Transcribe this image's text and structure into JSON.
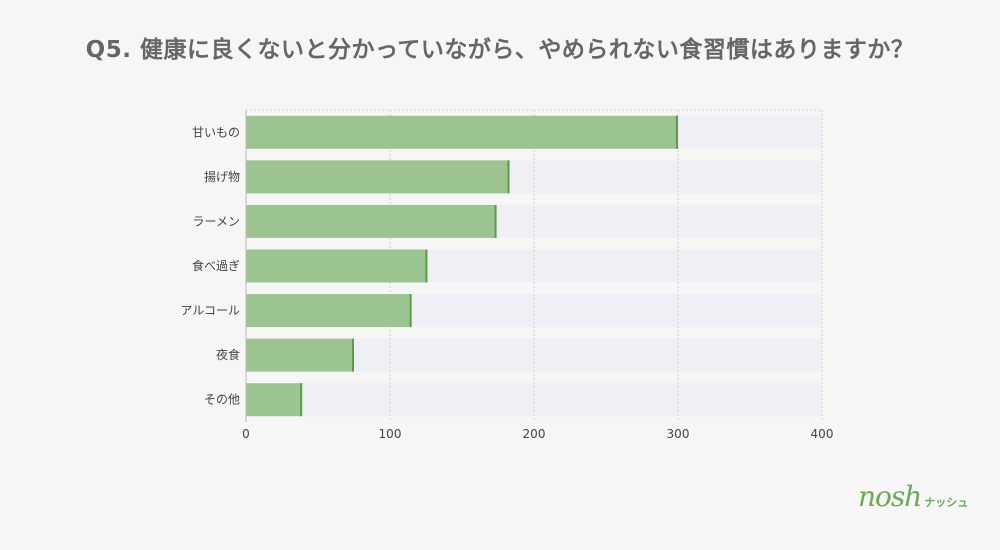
{
  "title": "Q5. 健康に良くないと分かっていながら、やめられない食習慣はありますか？",
  "colors": {
    "bar": "#9cc490",
    "bar_edge": "#5a9d46",
    "track": "#eef0f6",
    "grid": "#d0d0d0",
    "axis_text": "#444"
  },
  "chart_data": {
    "type": "bar",
    "orientation": "horizontal",
    "categories": [
      "甘いもの",
      "揚げ物",
      "ラーメン",
      "食べ過ぎ",
      "アルコール",
      "夜食",
      "その他"
    ],
    "values": [
      300,
      183,
      174,
      126,
      115,
      75,
      39
    ],
    "xlim": [
      0,
      400
    ],
    "xticks": [
      0,
      100,
      200,
      300,
      400
    ],
    "grid": true
  },
  "logo": {
    "main": "nosh",
    "sub": "ナッシュ"
  }
}
